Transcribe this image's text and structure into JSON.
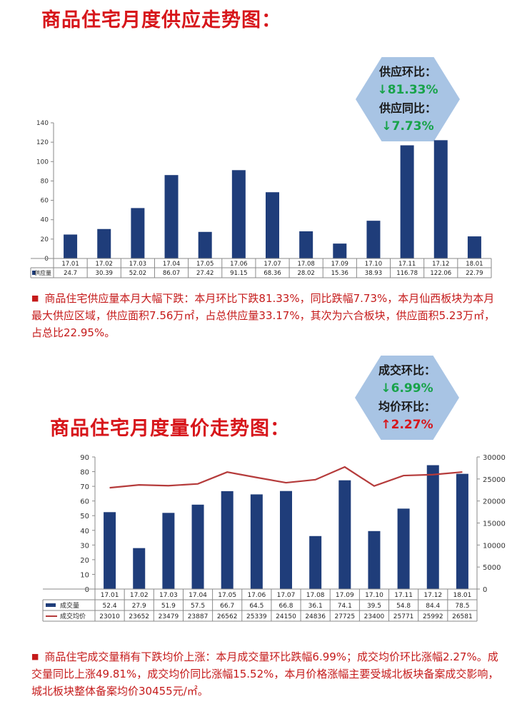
{
  "section1": {
    "title": "商品住宅月度供应走势图：",
    "kpi": {
      "label1": "供应环比：",
      "value1": "↓81.33%",
      "label2": "供应同比：",
      "value2": "↓7.73%"
    },
    "note": "商品住宅供应量本月大幅下跌：本月环比下跌81.33%，同比跌幅7.73%，本月仙西板块为本月最大供应区域，供应面积7.56万㎡，占总供应量33.17%，其次为六合板块，供应面积5.23万㎡，占总比22.95%。"
  },
  "section2": {
    "title": "商品住宅月度量价走势图：",
    "kpi": {
      "label1": "成交环比：",
      "value1": "↓6.99%",
      "label2": "均价环比：",
      "value2": "↑2.27%"
    },
    "note": "商品住宅成交量稍有下跌均价上涨：本月成交量环比跌幅6.99%；成交均价环比涨幅2.27%。成交量同比上涨49.81%，成交均价同比涨幅15.52%，本月价格涨幅主要受城北板块备案成交影响，城北板块整体备案均价30455元/㎡。"
  },
  "colors": {
    "bar": "#1f3d7a",
    "line": "#b53b3b",
    "title": "#d7161b",
    "up": "#d7161b",
    "down": "#18a34a"
  },
  "chart_data": [
    {
      "type": "bar",
      "categories": [
        "17.01",
        "17.02",
        "17.03",
        "17.04",
        "17.05",
        "17.06",
        "17.07",
        "17.08",
        "17.09",
        "17.10",
        "17.11",
        "17.12",
        "18.01"
      ],
      "series": [
        {
          "name": "供应量",
          "values": [
            24.7,
            30.39,
            52.02,
            86.07,
            27.42,
            91.15,
            68.36,
            28.02,
            15.36,
            38.93,
            116.78,
            122.06,
            22.79
          ]
        }
      ],
      "value_labels": [
        "24.7",
        "30.39",
        "52.02",
        "86.07",
        "27.42",
        "91.15",
        "68.36",
        "28.02",
        "15.36",
        "38.93",
        "116.78",
        "122.06",
        "22.79"
      ],
      "ylim": [
        0,
        140
      ],
      "yticks": [
        0,
        20,
        40,
        60,
        80,
        100,
        120,
        140
      ],
      "grid": false,
      "legend": "data-table-below"
    },
    {
      "type": "bar",
      "categories": [
        "17.01",
        "17.02",
        "17.03",
        "17.04",
        "17.05",
        "17.06",
        "17.07",
        "17.08",
        "17.09",
        "17.10",
        "17.11",
        "17.12",
        "18.01"
      ],
      "series": [
        {
          "name": "成交量",
          "type": "bar",
          "axis": "left",
          "values": [
            52.4,
            27.9,
            51.9,
            57.5,
            66.7,
            64.5,
            66.8,
            36.1,
            74.1,
            39.5,
            54.8,
            84.4,
            78.5
          ]
        },
        {
          "name": "成交均价",
          "type": "line",
          "axis": "right",
          "values": [
            23010,
            23652,
            23479,
            23887,
            26562,
            25339,
            24150,
            24836,
            27725,
            23400,
            25771,
            25992,
            26581
          ]
        }
      ],
      "value_labels": [
        [
          "52.4",
          "27.9",
          "51.9",
          "57.5",
          "66.7",
          "64.5",
          "66.8",
          "36.1",
          "74.1",
          "39.5",
          "54.8",
          "84.4",
          "78.5"
        ],
        [
          "23010",
          "23652",
          "23479",
          "23887",
          "26562",
          "25339",
          "24150",
          "24836",
          "27725",
          "23400",
          "25771",
          "25992",
          "26581"
        ]
      ],
      "ylim": [
        0,
        90
      ],
      "yticks": [
        0,
        10,
        20,
        30,
        40,
        50,
        60,
        70,
        80,
        90
      ],
      "y2lim": [
        0,
        30000
      ],
      "y2ticks": [
        0,
        5000,
        10000,
        15000,
        20000,
        25000,
        30000
      ],
      "grid": false,
      "legend": "data-table-below"
    }
  ]
}
